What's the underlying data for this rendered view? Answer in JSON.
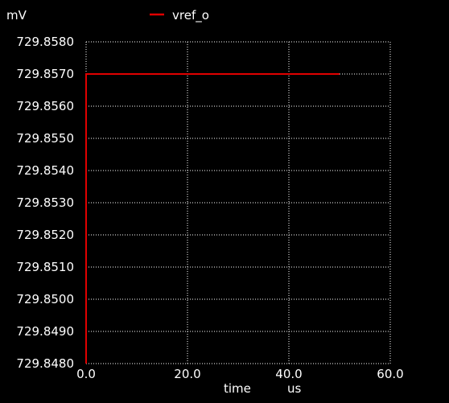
{
  "chart_data": {
    "type": "line",
    "y_unit_label": "mV",
    "x_label": "time",
    "x_unit_label": "us",
    "xlim": [
      0,
      60
    ],
    "ylim": [
      729.848,
      729.858
    ],
    "x_ticks": [
      0,
      20,
      40,
      60
    ],
    "x_tick_labels": [
      "0.0",
      "20.0",
      "40.0",
      "60.0"
    ],
    "y_ticks": [
      729.848,
      729.849,
      729.85,
      729.851,
      729.852,
      729.853,
      729.854,
      729.855,
      729.856,
      729.857,
      729.858
    ],
    "y_tick_labels": [
      "729.8480",
      "729.8490",
      "729.8500",
      "729.8510",
      "729.8520",
      "729.8530",
      "729.8540",
      "729.8550",
      "729.8560",
      "729.8570",
      "729.8580"
    ],
    "grid": true,
    "legend_position": "top",
    "series": [
      {
        "name": "vref_o",
        "color": "#e00000",
        "x": [
          0,
          0,
          50
        ],
        "y": [
          729.848,
          729.857,
          729.857
        ]
      }
    ]
  }
}
